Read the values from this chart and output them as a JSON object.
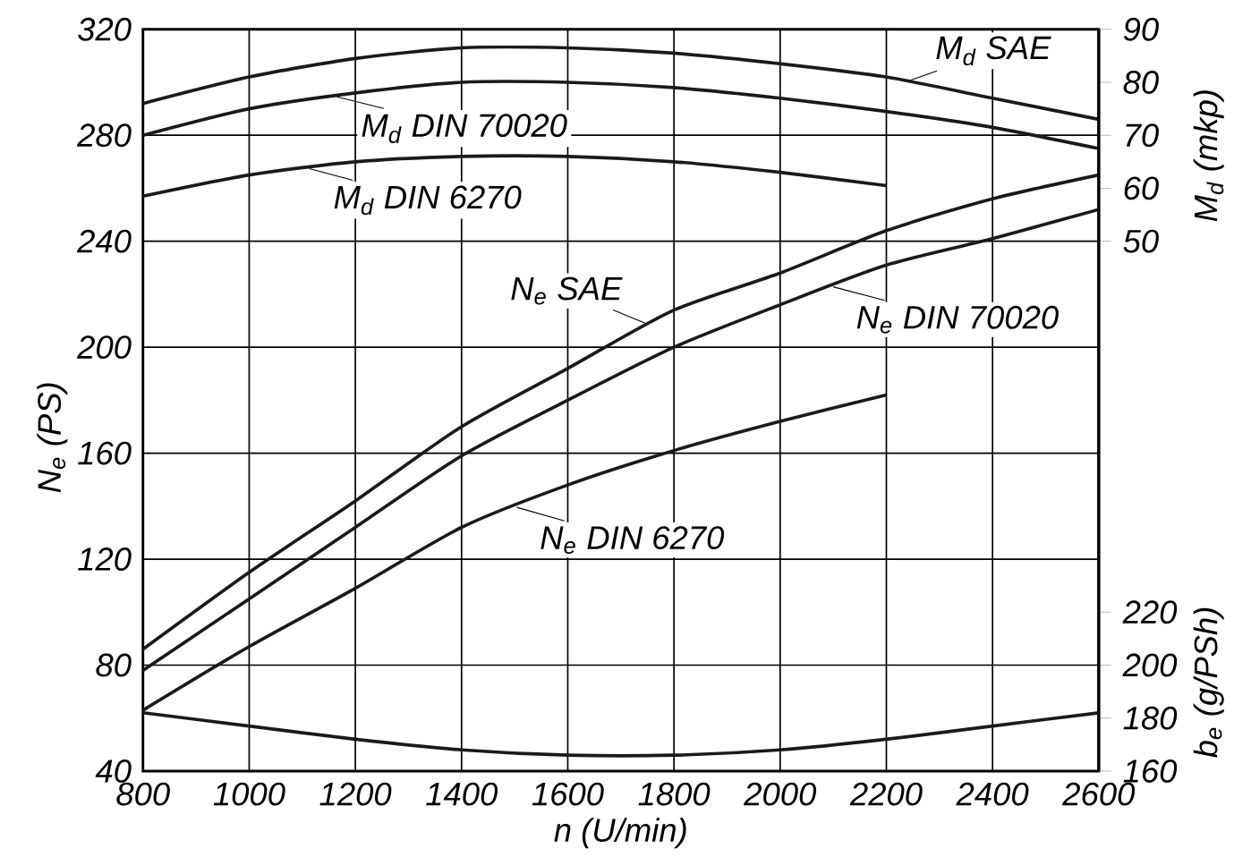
{
  "chart_data": {
    "type": "line",
    "x": [
      800,
      1000,
      1200,
      1400,
      1600,
      1800,
      2000,
      2200,
      2400,
      2600
    ],
    "xlabel": "n (U/min)",
    "ylabel": "N$_{e}$ (PS)",
    "y2label": "M$_{d}$ (mkp)",
    "y3label": "b$_{e}$ (g/PSh)",
    "xlim": [
      800,
      2600
    ],
    "xticks": [
      800,
      1000,
      1200,
      1400,
      1600,
      1800,
      2000,
      2200,
      2400,
      2600
    ],
    "ylim": [
      40,
      320
    ],
    "yticks": [
      40,
      80,
      120,
      160,
      200,
      240,
      280,
      320
    ],
    "y2lim": [
      -50,
      90
    ],
    "y2ticks": [
      50,
      60,
      70,
      80,
      90
    ],
    "y3lim": [
      160,
      440
    ],
    "y3ticks": [
      160,
      180,
      200,
      220
    ],
    "grid": true,
    "series": [
      {
        "name": "M$_{d}$ SAE",
        "color": "#1a1a1a",
        "axis": "y2",
        "values": [
          76,
          81,
          84.5,
          86.5,
          86.5,
          85.5,
          83.5,
          81,
          77,
          73
        ]
      },
      {
        "name": "M$_{d}$ DIN 70020",
        "color": "#1a1a1a",
        "axis": "y2",
        "values": [
          70,
          75,
          78,
          80,
          80,
          79,
          77,
          74.5,
          71.5,
          67.5
        ]
      },
      {
        "name": "M$_{d}$ DIN 6270",
        "color": "#1a1a1a",
        "axis": "y2",
        "values": [
          58.5,
          62.5,
          65,
          66,
          66,
          65,
          63,
          60.5,
          null,
          null
        ]
      },
      {
        "name": "N$_{e}$ SAE",
        "color": "#1a1a1a",
        "values": [
          86,
          115,
          142,
          170,
          192,
          214,
          228,
          244,
          256,
          265
        ]
      },
      {
        "name": "N$_{e}$ DIN 70020",
        "color": "#1a1a1a",
        "values": [
          78,
          105,
          132,
          159,
          180,
          200,
          216,
          231,
          241,
          252
        ]
      },
      {
        "name": "N$_{e}$ DIN 6270",
        "color": "#1a1a1a",
        "values": [
          63,
          87,
          109,
          132,
          148,
          161,
          172,
          182,
          null,
          null
        ]
      },
      {
        "color": "#1a1a1a",
        "axis": "y3",
        "values": [
          182,
          177,
          172,
          168,
          166,
          166,
          168,
          172,
          177,
          182
        ]
      }
    ]
  }
}
